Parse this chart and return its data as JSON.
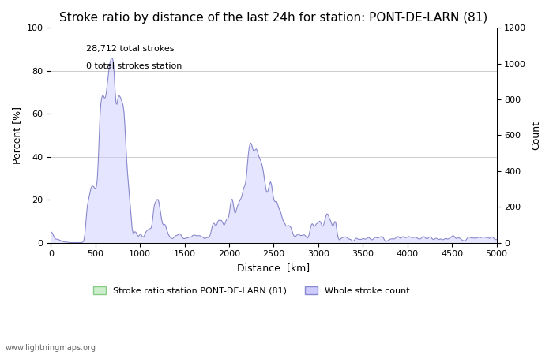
{
  "title": "Stroke ratio by distance of the last 24h for station: PONT-DE-LARN (81)",
  "annotation_line1": "28,712 total strokes",
  "annotation_line2": "0 total strokes station",
  "xlabel": "Distance  [km]",
  "ylabel_left": "Percent [%]",
  "ylabel_right": "Count",
  "xlim": [
    0,
    5000
  ],
  "ylim_left": [
    0,
    100
  ],
  "ylim_right": [
    0,
    1200
  ],
  "yticks_left": [
    0,
    20,
    40,
    60,
    80,
    100
  ],
  "yticks_right": [
    0,
    200,
    400,
    600,
    800,
    1000,
    1200
  ],
  "xticks": [
    0,
    500,
    1000,
    1500,
    2000,
    2500,
    3000,
    3500,
    4000,
    4500,
    5000
  ],
  "legend_station_label": "Stroke ratio station PONT-DE-LARN (81)",
  "legend_whole_label": "Whole stroke count",
  "station_fill_color": "#cceecc",
  "station_line_color": "#88cc88",
  "whole_fill_color": "#ccccff",
  "whole_line_color": "#8888cc",
  "watermark": "www.lightningmaps.org",
  "background_color": "#ffffff",
  "grid_color": "#cccccc",
  "title_fontsize": 11
}
